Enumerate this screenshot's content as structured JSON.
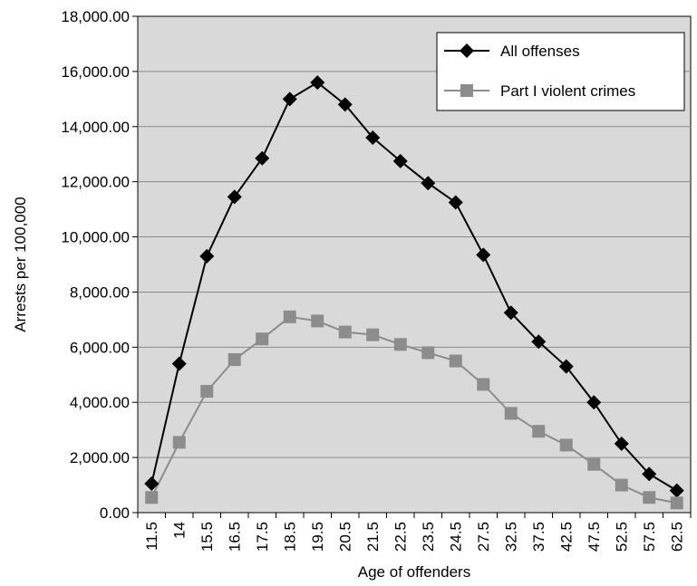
{
  "chart_data": {
    "type": "line",
    "xlabel": "Age of offenders",
    "ylabel": "Arrests per 100,000",
    "ylim": [
      0,
      18000
    ],
    "y_ticks": [
      "0.00",
      "2,000.00",
      "4,000.00",
      "6,000.00",
      "8,000.00",
      "10,000.00",
      "12,000.00",
      "14,000.00",
      "16,000.00",
      "18,000.00"
    ],
    "categories": [
      "11.5",
      "14",
      "15.5",
      "16.5",
      "17.5",
      "18.5",
      "19.5",
      "20.5",
      "21.5",
      "22.5",
      "23.5",
      "24.5",
      "27.5",
      "32.5",
      "37.5",
      "42.5",
      "47.5",
      "52.5",
      "57.5",
      "62.5"
    ],
    "grid": "horizontal",
    "legend_position": "top-right",
    "plot_background": "#d9d9d9",
    "series": [
      {
        "name": "All offenses",
        "color": "#000000",
        "marker": "diamond",
        "values": [
          1050,
          5400,
          9300,
          11450,
          12850,
          15000,
          15600,
          14800,
          13600,
          12750,
          11950,
          11250,
          9350,
          7250,
          6200,
          5300,
          4000,
          2500,
          1400,
          800
        ]
      },
      {
        "name": "Part I violent crimes",
        "color": "#8c8c8c",
        "marker": "square",
        "values": [
          550,
          2550,
          4400,
          5550,
          6300,
          7100,
          6950,
          6550,
          6450,
          6100,
          5800,
          5500,
          4650,
          3600,
          2950,
          2450,
          1750,
          1000,
          550,
          350
        ]
      }
    ]
  }
}
